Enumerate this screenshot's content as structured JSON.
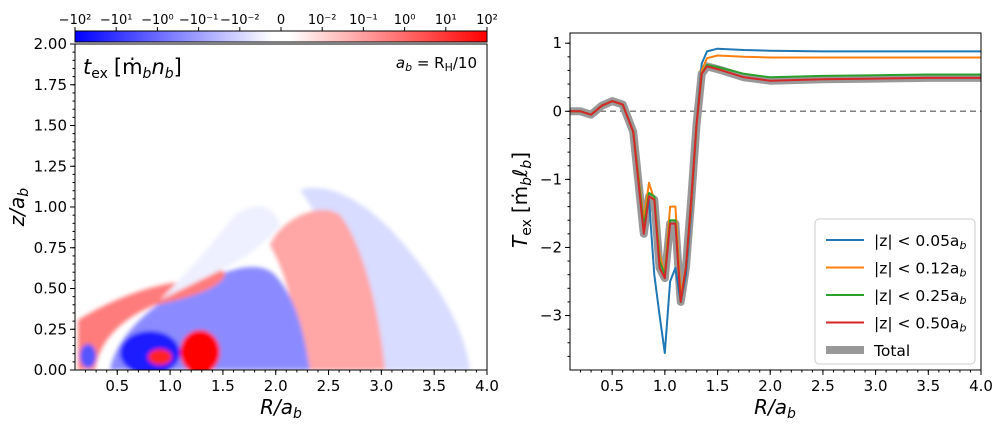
{
  "chart_data": [
    {
      "type": "heatmap",
      "annotation": "t_ex [ṁ_b n_b]",
      "annotation_parts": {
        "t": "t",
        "sub": "ex",
        "bracket": "[ṁ",
        "b1": "b",
        "n": "n",
        "b2": "b",
        "close": "]"
      },
      "label_right": "a_b = R_H/10",
      "label_right_parts": {
        "a": "a",
        "b": "b",
        "eq": " = R",
        "H": "H",
        "rest": "/10"
      },
      "xlabel": "R/a_b",
      "xlabel_parts": {
        "main": "R/a",
        "sub": "b"
      },
      "ylabel": "z/a_b",
      "ylabel_parts": {
        "main": "z/a",
        "sub": "b"
      },
      "xlim": [
        0.1,
        4.0
      ],
      "ylim": [
        0.0,
        2.0
      ],
      "xticks": [
        "0.5",
        "1.0",
        "1.5",
        "2.0",
        "2.5",
        "3.0",
        "3.5",
        "4.0"
      ],
      "yticks": [
        "0.00",
        "0.25",
        "0.50",
        "0.75",
        "1.00",
        "1.25",
        "1.50",
        "1.75",
        "2.00"
      ],
      "colorbar": {
        "scale": "symlog",
        "ticks": [
          "−10²",
          "−10¹",
          "−10⁰",
          "−10⁻¹",
          "−10⁻²",
          "0",
          "10⁻²",
          "10⁻¹",
          "10⁰",
          "10¹",
          "10²"
        ],
        "negative_color": "#0000ff",
        "positive_color": "#ff0000"
      }
    },
    {
      "type": "line",
      "xlabel": "R/a_b",
      "xlabel_parts": {
        "main": "R/a",
        "sub": "b"
      },
      "ylabel": "T_ex [ṁ_b ℓ_b]",
      "ylabel_parts": {
        "t": "T",
        "sub": "ex",
        "bracket": "[ṁ",
        "b1": "b",
        "l": "ℓ",
        "b2": "b",
        "close": "]"
      },
      "xlim": [
        0.1,
        4.0
      ],
      "ylim": [
        -3.8,
        1.15
      ],
      "xticks": [
        "0.5",
        "1.0",
        "1.5",
        "2.0",
        "2.5",
        "3.0",
        "3.5",
        "4.0"
      ],
      "yticks": [
        "1",
        "0",
        "−1",
        "−2",
        "−3"
      ],
      "legend_position": "lower-right",
      "series": [
        {
          "name": "|z| < 0.05a_b",
          "label_parts": {
            "main": "|z| < 0.05a",
            "sub": "b"
          },
          "color": "#1f77b4",
          "x": [
            0.1,
            0.2,
            0.3,
            0.4,
            0.5,
            0.6,
            0.7,
            0.8,
            0.85,
            0.9,
            0.95,
            1.0,
            1.05,
            1.1,
            1.15,
            1.2,
            1.25,
            1.3,
            1.35,
            1.4,
            1.5,
            1.75,
            2.0,
            2.5,
            3.0,
            3.5,
            4.0
          ],
          "y": [
            0.0,
            0.0,
            -0.05,
            0.08,
            0.15,
            0.1,
            -0.3,
            -1.6,
            -1.3,
            -2.4,
            -3.0,
            -3.55,
            -2.5,
            -2.3,
            -2.8,
            -2.4,
            -1.5,
            -0.2,
            0.7,
            0.88,
            0.92,
            0.9,
            0.89,
            0.88,
            0.88,
            0.88,
            0.88
          ]
        },
        {
          "name": "|z| < 0.12a_b",
          "label_parts": {
            "main": "|z| < 0.12a",
            "sub": "b"
          },
          "color": "#ff7f0e",
          "x": [
            0.1,
            0.2,
            0.3,
            0.4,
            0.5,
            0.6,
            0.7,
            0.8,
            0.85,
            0.9,
            0.95,
            1.0,
            1.05,
            1.1,
            1.15,
            1.2,
            1.25,
            1.3,
            1.35,
            1.4,
            1.5,
            1.75,
            2.0,
            2.5,
            3.0,
            3.5,
            4.0
          ],
          "y": [
            0.0,
            0.0,
            -0.05,
            0.08,
            0.15,
            0.1,
            -0.3,
            -1.6,
            -1.05,
            -1.3,
            -2.1,
            -2.4,
            -1.4,
            -1.4,
            -2.7,
            -2.3,
            -1.4,
            -0.2,
            0.6,
            0.78,
            0.82,
            0.8,
            0.79,
            0.79,
            0.79,
            0.79,
            0.79
          ]
        },
        {
          "name": "|z| < 0.25a_b",
          "label_parts": {
            "main": "|z| < 0.25a",
            "sub": "b"
          },
          "color": "#2ca02c",
          "x": [
            0.1,
            0.2,
            0.3,
            0.4,
            0.5,
            0.6,
            0.7,
            0.8,
            0.85,
            0.9,
            0.95,
            1.0,
            1.05,
            1.1,
            1.15,
            1.2,
            1.25,
            1.3,
            1.35,
            1.4,
            1.5,
            1.75,
            2.0,
            2.5,
            3.0,
            3.5,
            4.0
          ],
          "y": [
            0.0,
            0.0,
            -0.05,
            0.08,
            0.15,
            0.1,
            -0.3,
            -1.7,
            -1.2,
            -1.25,
            -2.2,
            -2.4,
            -1.6,
            -1.6,
            -2.8,
            -2.3,
            -1.3,
            -0.2,
            0.55,
            0.68,
            0.65,
            0.55,
            0.5,
            0.52,
            0.53,
            0.54,
            0.54
          ]
        },
        {
          "name": "|z| < 0.50a_b",
          "label_parts": {
            "main": "|z| < 0.50a",
            "sub": "b"
          },
          "color": "#d62728",
          "x": [
            0.1,
            0.2,
            0.3,
            0.4,
            0.5,
            0.6,
            0.7,
            0.8,
            0.85,
            0.9,
            0.95,
            1.0,
            1.05,
            1.1,
            1.15,
            1.2,
            1.25,
            1.3,
            1.35,
            1.4,
            1.5,
            1.75,
            2.0,
            2.5,
            3.0,
            3.5,
            4.0
          ],
          "y": [
            0.0,
            0.0,
            -0.05,
            0.08,
            0.15,
            0.1,
            -0.3,
            -1.8,
            -1.25,
            -1.3,
            -2.3,
            -2.45,
            -1.65,
            -1.65,
            -2.8,
            -2.3,
            -1.3,
            -0.2,
            0.55,
            0.66,
            0.62,
            0.5,
            0.45,
            0.47,
            0.48,
            0.49,
            0.49
          ]
        },
        {
          "name": "Total",
          "label_parts": {
            "main": "Total",
            "sub": ""
          },
          "color": "#999999",
          "x": [
            0.1,
            0.2,
            0.3,
            0.4,
            0.5,
            0.6,
            0.7,
            0.8,
            0.85,
            0.9,
            0.95,
            1.0,
            1.05,
            1.1,
            1.15,
            1.2,
            1.25,
            1.3,
            1.35,
            1.4,
            1.5,
            1.75,
            2.0,
            2.5,
            3.0,
            3.5,
            4.0
          ],
          "y": [
            0.0,
            0.0,
            -0.05,
            0.08,
            0.15,
            0.1,
            -0.3,
            -1.8,
            -1.25,
            -1.3,
            -2.3,
            -2.45,
            -1.65,
            -1.65,
            -2.8,
            -2.3,
            -1.3,
            -0.2,
            0.55,
            0.66,
            0.62,
            0.5,
            0.45,
            0.47,
            0.48,
            0.49,
            0.49
          ]
        }
      ]
    }
  ]
}
